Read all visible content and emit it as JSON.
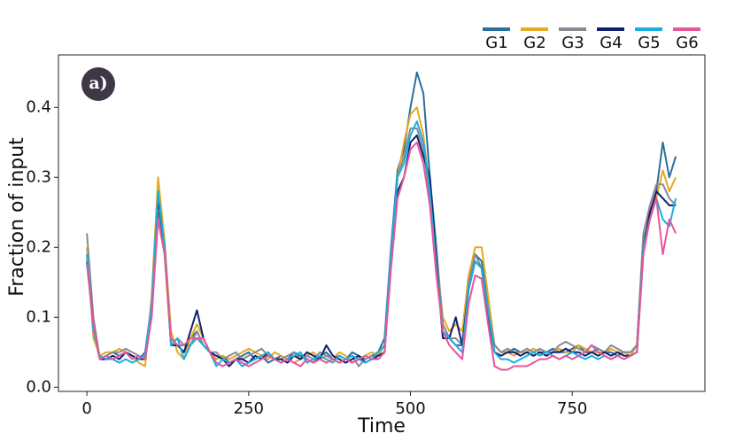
{
  "chart_data": {
    "type": "line",
    "xlabel": "Time",
    "ylabel": "Fraction of input",
    "annotation": "a)",
    "legend": "top-right",
    "x": [
      0,
      10,
      20,
      30,
      40,
      50,
      60,
      70,
      80,
      90,
      100,
      110,
      120,
      130,
      140,
      150,
      160,
      170,
      180,
      190,
      200,
      210,
      220,
      230,
      240,
      250,
      260,
      270,
      280,
      290,
      300,
      310,
      320,
      330,
      340,
      350,
      360,
      370,
      380,
      390,
      400,
      410,
      420,
      430,
      440,
      450,
      460,
      470,
      480,
      490,
      500,
      510,
      520,
      530,
      540,
      550,
      560,
      570,
      580,
      590,
      600,
      610,
      620,
      630,
      640,
      650,
      660,
      670,
      680,
      690,
      700,
      710,
      720,
      730,
      740,
      750,
      760,
      770,
      780,
      790,
      800,
      810,
      820,
      830,
      840,
      850,
      860,
      870,
      880,
      890,
      900,
      910
    ],
    "xlim": [
      -44,
      955
    ],
    "xticks": [
      0,
      250,
      500,
      750
    ],
    "ylim": [
      -0.006,
      0.475
    ],
    "yticks": [
      {
        "value": 0,
        "label": "0.0"
      },
      0.1,
      0.2,
      0.3,
      0.4
    ],
    "series": [
      {
        "name": "G1",
        "color": "#2a6f9b",
        "values": [
          0.19,
          0.08,
          0.04,
          0.045,
          0.05,
          0.045,
          0.05,
          0.045,
          0.04,
          0.05,
          0.12,
          0.28,
          0.2,
          0.07,
          0.06,
          0.05,
          0.07,
          0.08,
          0.06,
          0.05,
          0.04,
          0.045,
          0.035,
          0.04,
          0.045,
          0.05,
          0.04,
          0.045,
          0.035,
          0.04,
          0.045,
          0.04,
          0.05,
          0.045,
          0.04,
          0.035,
          0.045,
          0.05,
          0.04,
          0.045,
          0.04,
          0.05,
          0.045,
          0.04,
          0.045,
          0.05,
          0.07,
          0.2,
          0.31,
          0.34,
          0.4,
          0.45,
          0.42,
          0.3,
          0.2,
          0.09,
          0.07,
          0.06,
          0.06,
          0.16,
          0.19,
          0.18,
          0.12,
          0.06,
          0.05,
          0.05,
          0.055,
          0.05,
          0.05,
          0.045,
          0.05,
          0.05,
          0.055,
          0.05,
          0.05,
          0.055,
          0.06,
          0.05,
          0.05,
          0.055,
          0.05,
          0.05,
          0.045,
          0.05,
          0.05,
          0.06,
          0.21,
          0.24,
          0.28,
          0.35,
          0.3,
          0.33
        ]
      },
      {
        "name": "G2",
        "color": "#e3aa22",
        "values": [
          0.2,
          0.07,
          0.045,
          0.05,
          0.05,
          0.055,
          0.05,
          0.045,
          0.035,
          0.03,
          0.13,
          0.3,
          0.21,
          0.08,
          0.05,
          0.04,
          0.07,
          0.09,
          0.07,
          0.05,
          0.04,
          0.045,
          0.04,
          0.045,
          0.05,
          0.055,
          0.05,
          0.045,
          0.04,
          0.05,
          0.045,
          0.04,
          0.035,
          0.04,
          0.045,
          0.05,
          0.04,
          0.045,
          0.04,
          0.05,
          0.045,
          0.035,
          0.04,
          0.045,
          0.05,
          0.045,
          0.06,
          0.18,
          0.3,
          0.35,
          0.39,
          0.4,
          0.36,
          0.28,
          0.19,
          0.1,
          0.08,
          0.09,
          0.08,
          0.16,
          0.2,
          0.2,
          0.13,
          0.06,
          0.05,
          0.05,
          0.045,
          0.05,
          0.05,
          0.055,
          0.05,
          0.045,
          0.05,
          0.055,
          0.05,
          0.05,
          0.06,
          0.055,
          0.05,
          0.05,
          0.05,
          0.055,
          0.05,
          0.05,
          0.045,
          0.06,
          0.22,
          0.25,
          0.27,
          0.31,
          0.28,
          0.3
        ]
      },
      {
        "name": "G3",
        "color": "#8a8a93",
        "values": [
          0.22,
          0.1,
          0.04,
          0.045,
          0.05,
          0.05,
          0.055,
          0.05,
          0.045,
          0.04,
          0.1,
          0.25,
          0.19,
          0.06,
          0.07,
          0.06,
          0.06,
          0.08,
          0.06,
          0.05,
          0.05,
          0.04,
          0.045,
          0.05,
          0.04,
          0.045,
          0.05,
          0.055,
          0.045,
          0.04,
          0.04,
          0.045,
          0.05,
          0.04,
          0.045,
          0.04,
          0.05,
          0.045,
          0.04,
          0.035,
          0.04,
          0.045,
          0.03,
          0.04,
          0.045,
          0.04,
          0.05,
          0.19,
          0.3,
          0.33,
          0.37,
          0.37,
          0.34,
          0.27,
          0.19,
          0.09,
          0.07,
          0.07,
          0.06,
          0.15,
          0.19,
          0.17,
          0.11,
          0.06,
          0.05,
          0.055,
          0.05,
          0.05,
          0.055,
          0.05,
          0.055,
          0.05,
          0.05,
          0.06,
          0.065,
          0.06,
          0.055,
          0.05,
          0.06,
          0.055,
          0.05,
          0.06,
          0.055,
          0.05,
          0.05,
          0.06,
          0.22,
          0.26,
          0.29,
          0.29,
          0.27,
          0.26
        ]
      },
      {
        "name": "G4",
        "color": "#0f1f6e",
        "values": [
          0.18,
          0.09,
          0.04,
          0.04,
          0.045,
          0.04,
          0.05,
          0.045,
          0.04,
          0.04,
          0.11,
          0.27,
          0.2,
          0.06,
          0.06,
          0.05,
          0.08,
          0.11,
          0.07,
          0.05,
          0.045,
          0.04,
          0.03,
          0.04,
          0.04,
          0.035,
          0.045,
          0.04,
          0.05,
          0.04,
          0.04,
          0.035,
          0.045,
          0.04,
          0.05,
          0.045,
          0.04,
          0.06,
          0.045,
          0.04,
          0.035,
          0.04,
          0.045,
          0.035,
          0.04,
          0.045,
          0.05,
          0.18,
          0.28,
          0.3,
          0.35,
          0.36,
          0.33,
          0.3,
          0.18,
          0.07,
          0.07,
          0.1,
          0.06,
          0.14,
          0.18,
          0.17,
          0.1,
          0.05,
          0.045,
          0.05,
          0.05,
          0.045,
          0.05,
          0.045,
          0.05,
          0.045,
          0.05,
          0.05,
          0.055,
          0.05,
          0.05,
          0.045,
          0.05,
          0.045,
          0.05,
          0.045,
          0.05,
          0.045,
          0.045,
          0.05,
          0.2,
          0.25,
          0.28,
          0.27,
          0.26,
          0.26
        ]
      },
      {
        "name": "G5",
        "color": "#17b0e0",
        "values": [
          0.19,
          0.08,
          0.045,
          0.04,
          0.04,
          0.035,
          0.04,
          0.035,
          0.04,
          0.045,
          0.12,
          0.28,
          0.2,
          0.06,
          0.07,
          0.04,
          0.06,
          0.07,
          0.06,
          0.05,
          0.03,
          0.04,
          0.035,
          0.04,
          0.03,
          0.035,
          0.04,
          0.045,
          0.05,
          0.04,
          0.035,
          0.04,
          0.045,
          0.05,
          0.035,
          0.04,
          0.045,
          0.04,
          0.035,
          0.045,
          0.04,
          0.045,
          0.04,
          0.035,
          0.04,
          0.05,
          0.06,
          0.19,
          0.3,
          0.32,
          0.36,
          0.38,
          0.35,
          0.28,
          0.17,
          0.08,
          0.07,
          0.06,
          0.05,
          0.14,
          0.18,
          0.17,
          0.11,
          0.05,
          0.04,
          0.04,
          0.035,
          0.04,
          0.045,
          0.05,
          0.045,
          0.05,
          0.045,
          0.04,
          0.045,
          0.05,
          0.045,
          0.04,
          0.045,
          0.04,
          0.045,
          0.04,
          0.045,
          0.04,
          0.045,
          0.05,
          0.2,
          0.24,
          0.27,
          0.24,
          0.23,
          0.27
        ]
      },
      {
        "name": "G6",
        "color": "#e8559a",
        "values": [
          0.175,
          0.09,
          0.04,
          0.045,
          0.04,
          0.045,
          0.05,
          0.04,
          0.045,
          0.04,
          0.1,
          0.24,
          0.19,
          0.07,
          0.06,
          0.06,
          0.07,
          0.07,
          0.07,
          0.05,
          0.035,
          0.03,
          0.035,
          0.04,
          0.035,
          0.03,
          0.035,
          0.04,
          0.045,
          0.04,
          0.035,
          0.04,
          0.035,
          0.03,
          0.04,
          0.035,
          0.04,
          0.035,
          0.04,
          0.035,
          0.04,
          0.035,
          0.04,
          0.045,
          0.04,
          0.04,
          0.05,
          0.17,
          0.27,
          0.3,
          0.34,
          0.35,
          0.32,
          0.26,
          0.16,
          0.08,
          0.06,
          0.05,
          0.04,
          0.12,
          0.16,
          0.155,
          0.09,
          0.03,
          0.025,
          0.025,
          0.03,
          0.03,
          0.03,
          0.035,
          0.04,
          0.04,
          0.045,
          0.04,
          0.045,
          0.04,
          0.045,
          0.05,
          0.06,
          0.05,
          0.045,
          0.04,
          0.045,
          0.04,
          0.045,
          0.05,
          0.19,
          0.24,
          0.27,
          0.19,
          0.24,
          0.22
        ]
      }
    ]
  }
}
